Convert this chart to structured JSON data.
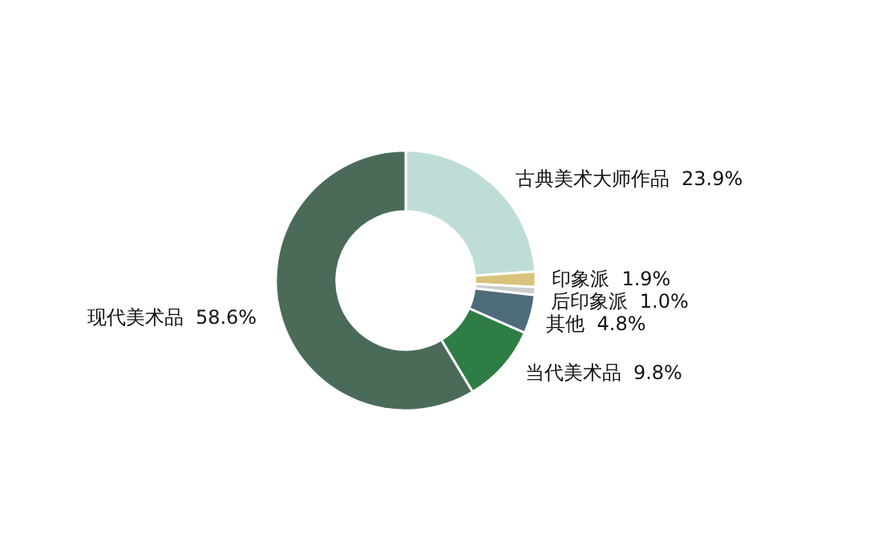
{
  "chart_data": {
    "type": "donut",
    "categories": [
      "古典美术大师作品",
      "印象派",
      "后印象派",
      "其他",
      "当代美术品",
      "现代美术品"
    ],
    "values": [
      23.9,
      1.9,
      1.0,
      4.8,
      9.8,
      58.6
    ],
    "value_labels": [
      "23.9%",
      "1.9%",
      "1.0%",
      "4.8%",
      "9.8%",
      "58.6%"
    ],
    "colors": [
      "#bfddd8",
      "#d9c27a",
      "#c9cdcd",
      "#4e6b7c",
      "#2e7d45",
      "#4a6b58"
    ],
    "legend": false
  }
}
